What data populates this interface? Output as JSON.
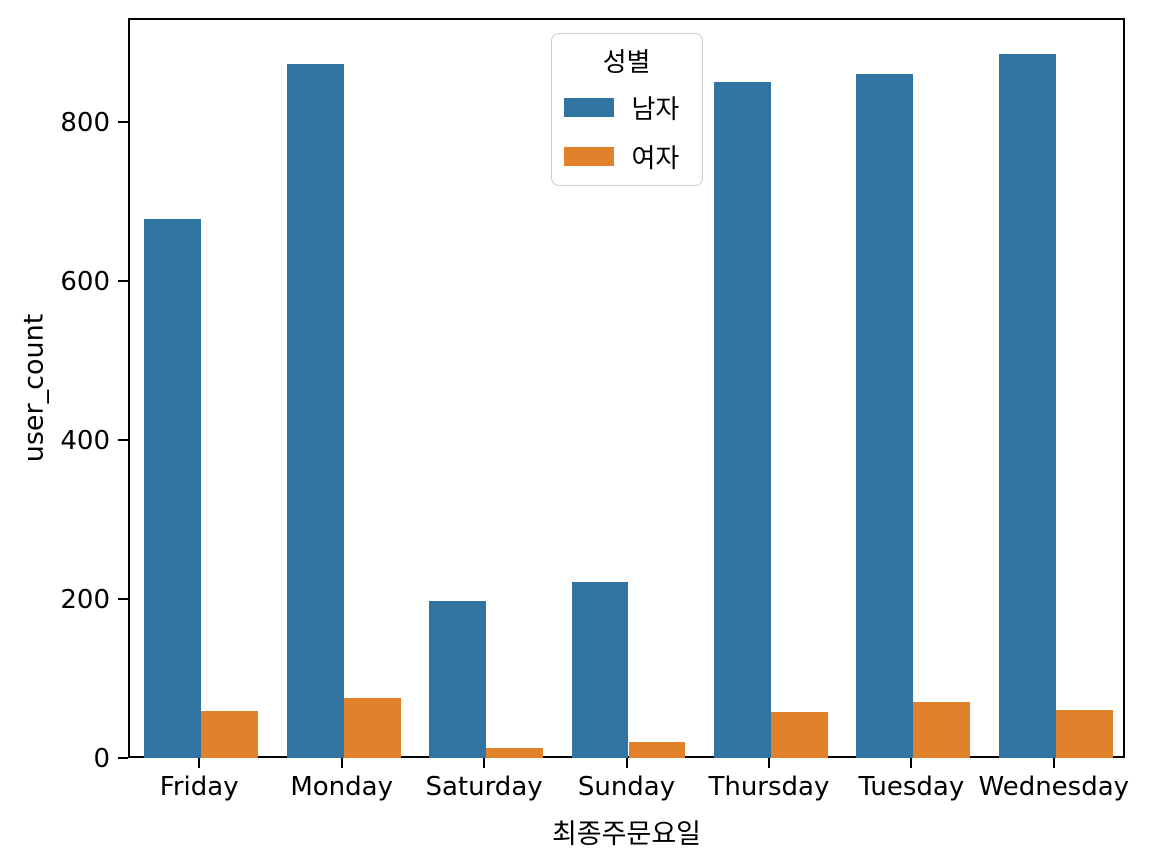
{
  "chart_data": {
    "type": "bar",
    "title": "",
    "xlabel": "최종주문요일",
    "ylabel": "user_count",
    "categories": [
      "Friday",
      "Monday",
      "Saturday",
      "Sunday",
      "Thursday",
      "Tuesday",
      "Wednesday"
    ],
    "series": [
      {
        "name": "남자",
        "color": "#3274a1",
        "values": [
          678,
          873,
          197,
          222,
          851,
          861,
          886
        ]
      },
      {
        "name": "여자",
        "color": "#e1812c",
        "values": [
          59,
          75,
          13,
          20,
          58,
          70,
          61
        ]
      }
    ],
    "ylim": [
      0,
      931
    ],
    "yticks": [
      0,
      200,
      400,
      600,
      800
    ],
    "ytick_labels": [
      "0",
      "200",
      "400",
      "600",
      "800"
    ],
    "grid": false,
    "legend": {
      "title": "성별",
      "position": "upper center",
      "entries": [
        "남자",
        "여자"
      ]
    }
  }
}
